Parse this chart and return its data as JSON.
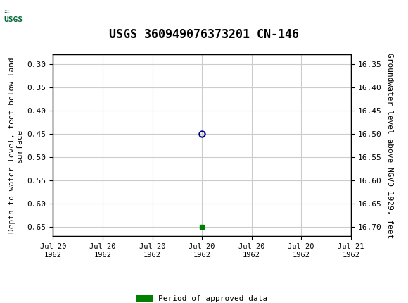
{
  "title": "USGS 360949076373201 CN-146",
  "header_bg_color": "#006633",
  "plot_bg_color": "#ffffff",
  "grid_color": "#cccccc",
  "left_ylabel": "Depth to water level, feet below land\nsurface",
  "right_ylabel": "Groundwater level above NGVD 1929, feet",
  "ylim_left": [
    0.28,
    0.67
  ],
  "ylim_right": [
    16.33,
    16.72
  ],
  "left_yticks": [
    0.3,
    0.35,
    0.4,
    0.45,
    0.5,
    0.55,
    0.6,
    0.65
  ],
  "right_yticks": [
    16.7,
    16.65,
    16.6,
    16.55,
    16.5,
    16.45,
    16.4,
    16.35
  ],
  "xlim": [
    0,
    6
  ],
  "xtick_labels": [
    "Jul 20\n1962",
    "Jul 20\n1962",
    "Jul 20\n1962",
    "Jul 20\n1962",
    "Jul 20\n1962",
    "Jul 20\n1962",
    "Jul 21\n1962"
  ],
  "data_point_x": 3.0,
  "data_point_y": 0.45,
  "data_point_color": "#000080",
  "data_point_size": 6,
  "green_marker_x": 3.0,
  "green_marker_y": 0.65,
  "green_marker_color": "#008000",
  "legend_label": "Period of approved data",
  "legend_color": "#008000",
  "font_family": "monospace"
}
